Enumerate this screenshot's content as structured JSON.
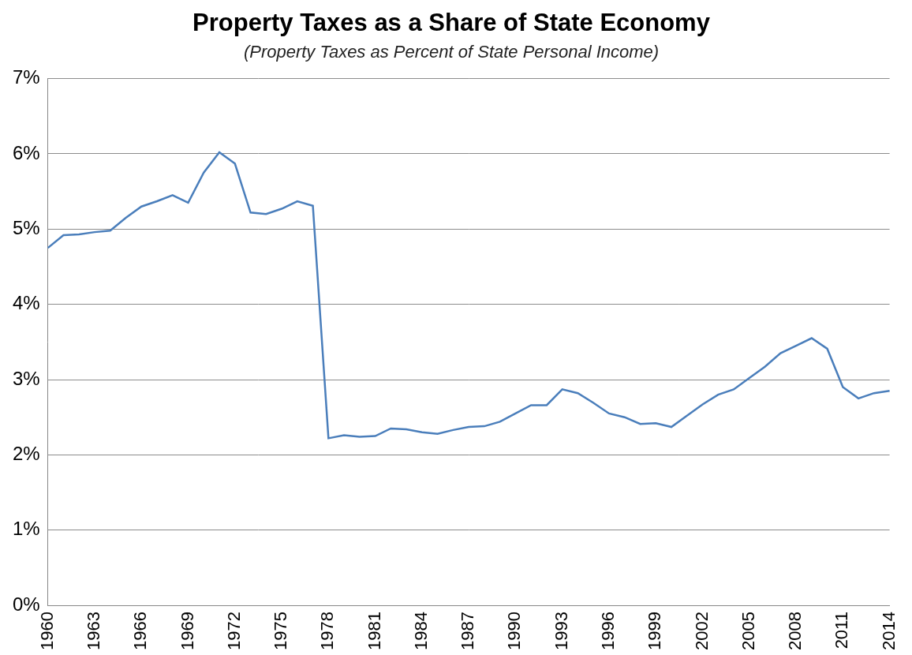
{
  "chart_data": {
    "type": "line",
    "title": "Property Taxes as a Share of State Economy",
    "subtitle": "(Property Taxes as Percent of State Personal Income)",
    "categories": [
      "1960",
      null,
      null,
      "1963",
      null,
      null,
      "1966",
      null,
      null,
      "1969",
      null,
      null,
      "1972",
      null,
      null,
      "1975",
      null,
      null,
      "1978",
      null,
      null,
      "1981",
      null,
      null,
      "1984",
      null,
      null,
      "1987",
      null,
      null,
      "1990",
      null,
      null,
      "1993",
      null,
      null,
      "1996",
      null,
      null,
      "1999",
      null,
      null,
      "2002",
      null,
      null,
      "2005",
      null,
      null,
      "2008",
      null,
      null,
      "2011",
      null,
      null,
      "2014"
    ],
    "values": [
      4.75,
      4.92,
      4.93,
      4.96,
      4.98,
      5.15,
      5.3,
      5.37,
      5.45,
      5.35,
      5.75,
      6.02,
      5.87,
      5.22,
      5.2,
      5.27,
      5.37,
      5.31,
      2.22,
      2.26,
      2.24,
      2.25,
      2.35,
      2.34,
      2.3,
      2.28,
      2.33,
      2.37,
      2.38,
      2.44,
      2.55,
      2.66,
      2.66,
      2.87,
      2.82,
      2.69,
      2.55,
      2.5,
      2.41,
      2.42,
      2.37,
      2.52,
      2.67,
      2.8,
      2.87,
      3.02,
      3.17,
      3.35,
      3.45,
      3.55,
      3.41,
      2.9,
      2.75,
      2.82,
      2.85
    ],
    "color": "#4a7ebb",
    "marker": "none",
    "line_style": "solid",
    "ylim": [
      0,
      7
    ],
    "yticks": [
      {
        "value": 0,
        "label": "0%"
      },
      {
        "value": 1,
        "label": "1%"
      },
      {
        "value": 2,
        "label": "2%"
      },
      {
        "value": 3,
        "label": "3%"
      },
      {
        "value": 4,
        "label": "4%"
      },
      {
        "value": 5,
        "label": "5%"
      },
      {
        "value": 6,
        "label": "6%"
      },
      {
        "value": 7,
        "label": "7%"
      }
    ],
    "grid": true
  }
}
